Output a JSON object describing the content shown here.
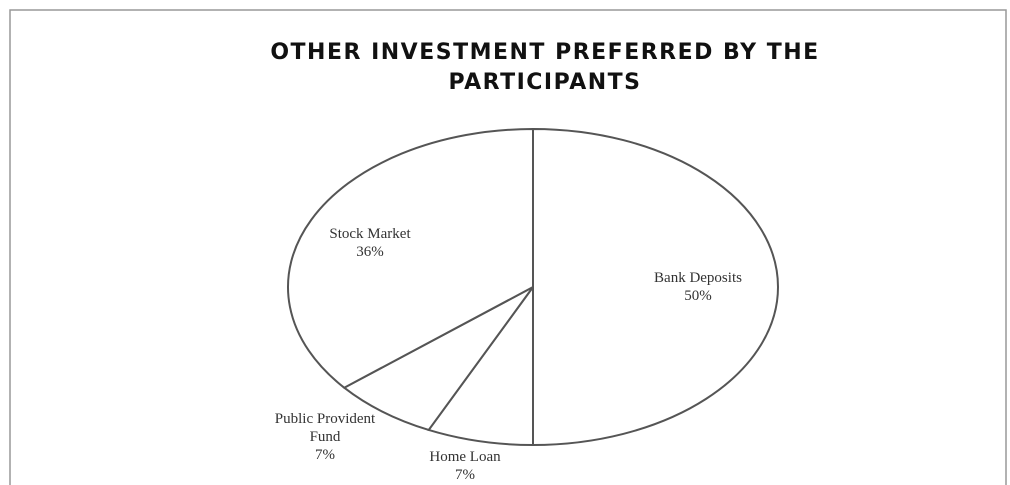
{
  "chart_data": {
    "type": "pie",
    "title": "OTHER INVESTMENT PREFERRED BY THE PARTICIPANTS",
    "categories": [
      "Bank Deposits",
      "Home Loan",
      "Public Provident Fund",
      "Stock Market"
    ],
    "values": [
      50,
      7,
      7,
      36
    ],
    "value_labels": [
      "50%",
      "7%",
      "7%",
      "36%"
    ],
    "color": "#ffffff"
  }
}
